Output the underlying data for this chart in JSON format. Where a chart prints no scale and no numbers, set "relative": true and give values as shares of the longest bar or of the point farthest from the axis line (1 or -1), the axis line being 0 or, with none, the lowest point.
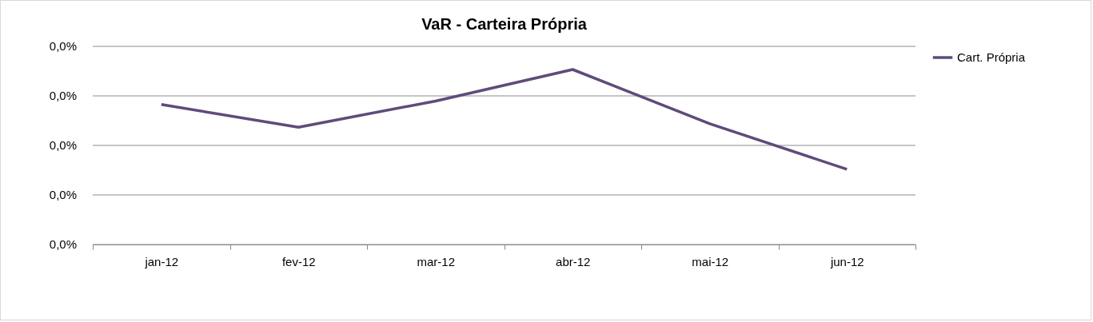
{
  "chart_data": {
    "type": "line",
    "title": "VaR - Carteira Própria",
    "relative": true,
    "categories": [
      "jan-12",
      "fev-12",
      "mar-12",
      "abr-12",
      "mai-12",
      "jun-12"
    ],
    "series": [
      {
        "name": "Cart. Própria",
        "color": "#5f4b7b",
        "values": [
          0.8,
          0.67,
          0.82,
          1,
          0.69,
          0.43
        ]
      }
    ],
    "annotations": [
      "0,0%",
      "0,0%",
      "0,0%",
      "0,0%",
      "0,0%"
    ],
    "grid": "y",
    "legend": "right",
    "marker": "none",
    "line_style": "solid"
  }
}
